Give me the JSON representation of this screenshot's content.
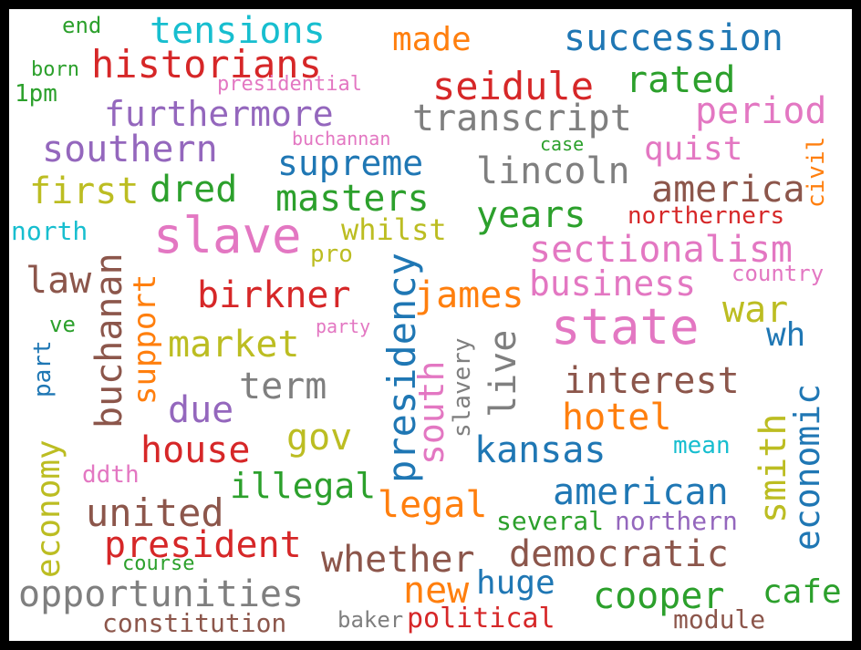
{
  "colors": {
    "background": "#ffffff",
    "frame": "#000000",
    "palette": [
      "#1f77b4",
      "#ff7f0e",
      "#2ca02c",
      "#d62728",
      "#9467bd",
      "#8c564b",
      "#e377c2",
      "#7f7f7f",
      "#bcbd22",
      "#17becf"
    ]
  },
  "words": [
    {
      "text": "end",
      "color": "#2ca02c"
    },
    {
      "text": "tensions",
      "color": "#17becf"
    },
    {
      "text": "made",
      "color": "#ff7f0e"
    },
    {
      "text": "succession",
      "color": "#1f77b4"
    },
    {
      "text": "born",
      "color": "#2ca02c"
    },
    {
      "text": "historians",
      "color": "#d62728"
    },
    {
      "text": "seidule",
      "color": "#d62728"
    },
    {
      "text": "rated",
      "color": "#2ca02c"
    },
    {
      "text": "1pm",
      "color": "#2ca02c"
    },
    {
      "text": "presidential",
      "color": "#e377c2"
    },
    {
      "text": "furthermore",
      "color": "#9467bd"
    },
    {
      "text": "transcript",
      "color": "#7f7f7f"
    },
    {
      "text": "period",
      "color": "#e377c2"
    },
    {
      "text": "buchannan",
      "color": "#e377c2"
    },
    {
      "text": "case",
      "color": "#2ca02c"
    },
    {
      "text": "quist",
      "color": "#e377c2"
    },
    {
      "text": "southern",
      "color": "#9467bd"
    },
    {
      "text": "supreme",
      "color": "#1f77b4"
    },
    {
      "text": "lincoln",
      "color": "#7f7f7f"
    },
    {
      "text": "civil",
      "color": "#ff7f0e"
    },
    {
      "text": "first",
      "color": "#bcbd22"
    },
    {
      "text": "dred",
      "color": "#2ca02c"
    },
    {
      "text": "masters",
      "color": "#2ca02c"
    },
    {
      "text": "america",
      "color": "#8c564b"
    },
    {
      "text": "years",
      "color": "#2ca02c"
    },
    {
      "text": "northerners",
      "color": "#d62728"
    },
    {
      "text": "north",
      "color": "#17becf"
    },
    {
      "text": "slave",
      "color": "#e377c2"
    },
    {
      "text": "whilst",
      "color": "#bcbd22"
    },
    {
      "text": "sectionalism",
      "color": "#e377c2"
    },
    {
      "text": "pro",
      "color": "#bcbd22"
    },
    {
      "text": "buchanan",
      "color": "#8c564b"
    },
    {
      "text": "law",
      "color": "#8c564b"
    },
    {
      "text": "business",
      "color": "#e377c2"
    },
    {
      "text": "country",
      "color": "#e377c2"
    },
    {
      "text": "support",
      "color": "#ff7f0e"
    },
    {
      "text": "birkner",
      "color": "#d62728"
    },
    {
      "text": "james",
      "color": "#ff7f0e"
    },
    {
      "text": "presidency",
      "color": "#1f77b4"
    },
    {
      "text": "war",
      "color": "#bcbd22"
    },
    {
      "text": "state",
      "color": "#e377c2"
    },
    {
      "text": "ve",
      "color": "#2ca02c"
    },
    {
      "text": "party",
      "color": "#e377c2"
    },
    {
      "text": "slavery",
      "color": "#7f7f7f"
    },
    {
      "text": "wh",
      "color": "#1f77b4"
    },
    {
      "text": "market",
      "color": "#bcbd22"
    },
    {
      "text": "live",
      "color": "#7f7f7f"
    },
    {
      "text": "part",
      "color": "#1f77b4"
    },
    {
      "text": "south",
      "color": "#e377c2"
    },
    {
      "text": "term",
      "color": "#7f7f7f"
    },
    {
      "text": "interest",
      "color": "#8c564b"
    },
    {
      "text": "economic",
      "color": "#1f77b4"
    },
    {
      "text": "due",
      "color": "#9467bd"
    },
    {
      "text": "hotel",
      "color": "#ff7f0e"
    },
    {
      "text": "smith",
      "color": "#bcbd22"
    },
    {
      "text": "economy",
      "color": "#bcbd22"
    },
    {
      "text": "gov",
      "color": "#bcbd22"
    },
    {
      "text": "house",
      "color": "#d62728"
    },
    {
      "text": "kansas",
      "color": "#1f77b4"
    },
    {
      "text": "mean",
      "color": "#17becf"
    },
    {
      "text": "ddth",
      "color": "#e377c2"
    },
    {
      "text": "illegal",
      "color": "#2ca02c"
    },
    {
      "text": "american",
      "color": "#1f77b4"
    },
    {
      "text": "united",
      "color": "#8c564b"
    },
    {
      "text": "legal",
      "color": "#ff7f0e"
    },
    {
      "text": "several",
      "color": "#2ca02c"
    },
    {
      "text": "northern",
      "color": "#9467bd"
    },
    {
      "text": "president",
      "color": "#d62728"
    },
    {
      "text": "whether",
      "color": "#8c564b"
    },
    {
      "text": "democratic",
      "color": "#8c564b"
    },
    {
      "text": "course",
      "color": "#2ca02c"
    },
    {
      "text": "huge",
      "color": "#1f77b4"
    },
    {
      "text": "opportunities",
      "color": "#7f7f7f"
    },
    {
      "text": "new",
      "color": "#ff7f0e"
    },
    {
      "text": "cooper",
      "color": "#2ca02c"
    },
    {
      "text": "cafe",
      "color": "#2ca02c"
    },
    {
      "text": "constitution",
      "color": "#8c564b"
    },
    {
      "text": "baker",
      "color": "#7f7f7f"
    },
    {
      "text": "political",
      "color": "#d62728"
    },
    {
      "text": "module",
      "color": "#8c564b"
    }
  ]
}
